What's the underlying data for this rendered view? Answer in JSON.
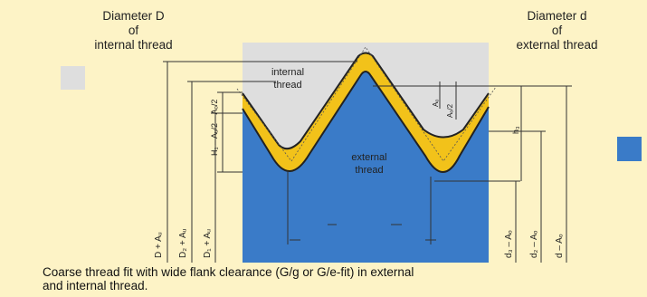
{
  "header_left": {
    "line1": "Diameter D",
    "line2": "of",
    "line3": "internal thread"
  },
  "header_right": {
    "line1": "Diameter d",
    "line2": "of",
    "line3": "external thread"
  },
  "region_labels": {
    "internal_line1": "internal",
    "internal_line2": "thread",
    "external_line1": "external",
    "external_line2": "thread"
  },
  "dim_labels_left": [
    "D + Aᵤ",
    "D₂ + Aᵤ",
    "D₁ + Aᵤ",
    "H₁ – Aᵤ/2 – Aₒ/2"
  ],
  "dim_labels_right": [
    "d₃ – Aₒ",
    "d₂ – Aₒ",
    "d – Aₒ",
    "h₃",
    "Aₒ/2",
    "Aₒ"
  ],
  "caption": {
    "line1": "Coarse thread fit with wide flank clearance (G/g or G/e-fit) in external",
    "line2": "and internal thread."
  },
  "colors": {
    "background": "#fdf3c6",
    "internal": "#dedede",
    "external": "#3a7bc8",
    "clearance": "#f2c21a"
  }
}
